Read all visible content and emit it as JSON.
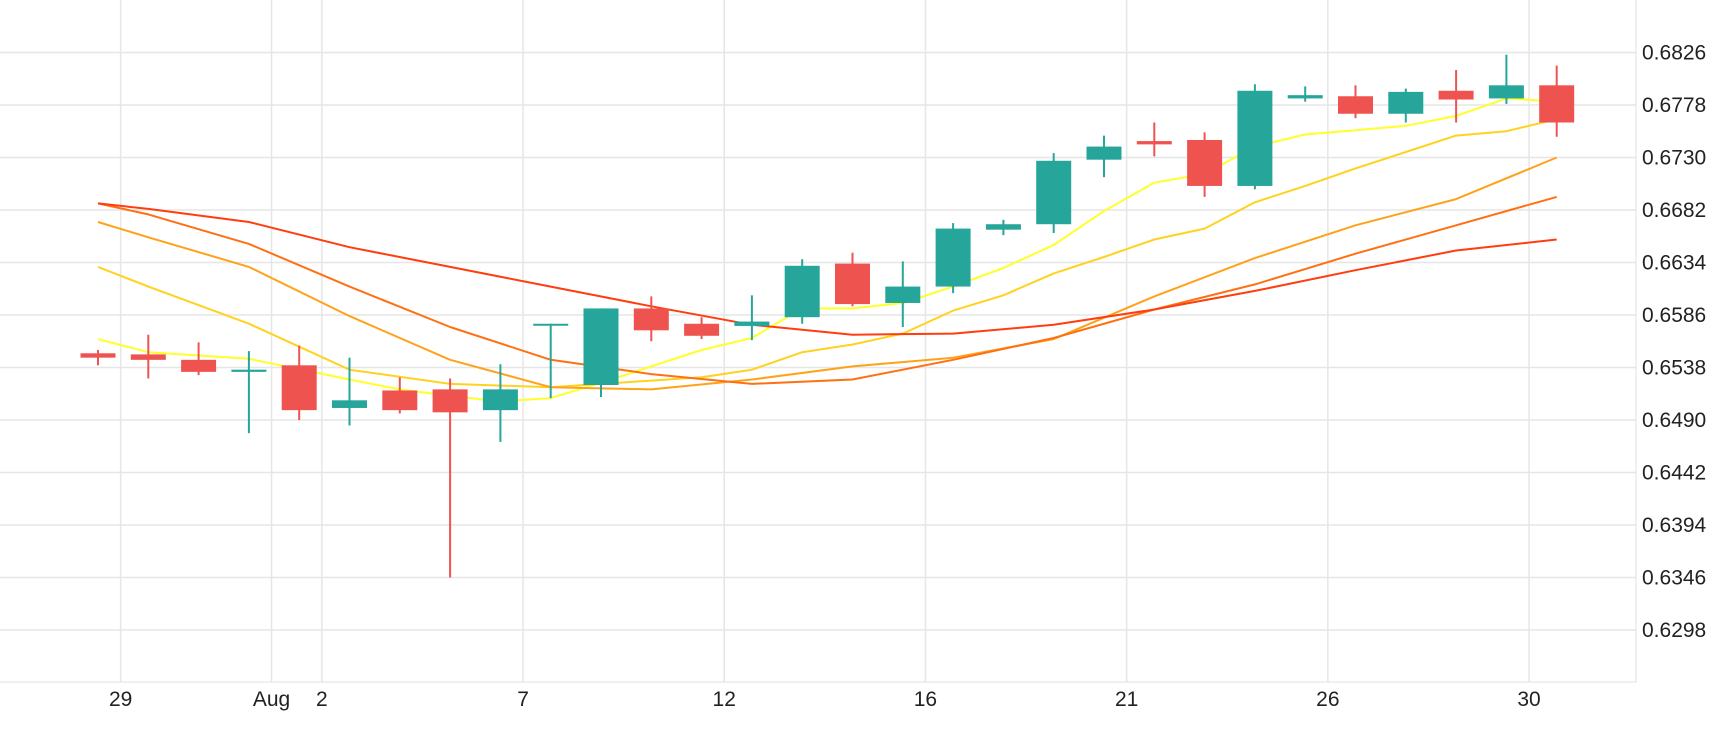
{
  "colors": {
    "background": "#ffffff",
    "grid": "#e6e6e6",
    "up": "#26a69a",
    "down": "#ef5350",
    "ma": [
      "#ffff2a",
      "#ffd21f",
      "#ffa21a",
      "#ff7014",
      "#ff3d0f"
    ]
  },
  "chart_data": {
    "type": "candlestick",
    "title": "",
    "xlabel": "",
    "ylabel": "",
    "grid": true,
    "y_axis_position": "right",
    "ylim": [
      0.625,
      0.6874
    ],
    "x_ticks": [
      {
        "label": "29",
        "x": 0.45
      },
      {
        "label": "Aug",
        "x": 3.45
      },
      {
        "label": "2",
        "x": 4.45
      },
      {
        "label": "7",
        "x": 8.45
      },
      {
        "label": "12",
        "x": 12.45
      },
      {
        "label": "16",
        "x": 16.45
      },
      {
        "label": "21",
        "x": 20.45
      },
      {
        "label": "26",
        "x": 24.45
      },
      {
        "label": "30",
        "x": 28.45
      }
    ],
    "y_ticks": [
      "0.6826",
      "0.6778",
      "0.6730",
      "0.6682",
      "0.6634",
      "0.6586",
      "0.6538",
      "0.6490",
      "0.6442",
      "0.6394",
      "0.6346",
      "0.6298"
    ],
    "candles": [
      {
        "x": 0,
        "open": 0.6551,
        "high": 0.6554,
        "low": 0.654,
        "close": 0.6547
      },
      {
        "x": 1,
        "open": 0.655,
        "high": 0.6568,
        "low": 0.6528,
        "close": 0.6545
      },
      {
        "x": 2,
        "open": 0.6545,
        "high": 0.6561,
        "low": 0.6531,
        "close": 0.6534
      },
      {
        "x": 3,
        "open": 0.6534,
        "high": 0.6553,
        "low": 0.6478,
        "close": 0.6536
      },
      {
        "x": 4,
        "open": 0.654,
        "high": 0.6558,
        "low": 0.649,
        "close": 0.6499
      },
      {
        "x": 5,
        "open": 0.6501,
        "high": 0.6547,
        "low": 0.6485,
        "close": 0.6508
      },
      {
        "x": 6,
        "open": 0.6517,
        "high": 0.6529,
        "low": 0.6496,
        "close": 0.6499
      },
      {
        "x": 7,
        "open": 0.6518,
        "high": 0.6528,
        "low": 0.6346,
        "close": 0.6497
      },
      {
        "x": 8,
        "open": 0.6499,
        "high": 0.6541,
        "low": 0.647,
        "close": 0.6518
      },
      {
        "x": 9,
        "open": 0.6578,
        "high": 0.6578,
        "low": 0.651,
        "close": 0.6578
      },
      {
        "x": 10,
        "open": 0.6522,
        "high": 0.6592,
        "low": 0.6511,
        "close": 0.6592
      },
      {
        "x": 11,
        "open": 0.6592,
        "high": 0.6603,
        "low": 0.6562,
        "close": 0.6572
      },
      {
        "x": 12,
        "open": 0.6578,
        "high": 0.6584,
        "low": 0.6564,
        "close": 0.6567
      },
      {
        "x": 13,
        "open": 0.6576,
        "high": 0.6604,
        "low": 0.6563,
        "close": 0.658
      },
      {
        "x": 14,
        "open": 0.6584,
        "high": 0.6637,
        "low": 0.6578,
        "close": 0.6631
      },
      {
        "x": 15,
        "open": 0.6633,
        "high": 0.6643,
        "low": 0.6594,
        "close": 0.6596
      },
      {
        "x": 16,
        "open": 0.6597,
        "high": 0.6635,
        "low": 0.6575,
        "close": 0.6612
      },
      {
        "x": 17,
        "open": 0.6612,
        "high": 0.667,
        "low": 0.6606,
        "close": 0.6665
      },
      {
        "x": 18,
        "open": 0.6664,
        "high": 0.6673,
        "low": 0.6659,
        "close": 0.6669
      },
      {
        "x": 19,
        "open": 0.6669,
        "high": 0.6734,
        "low": 0.6661,
        "close": 0.6727
      },
      {
        "x": 20,
        "open": 0.6728,
        "high": 0.675,
        "low": 0.6712,
        "close": 0.674
      },
      {
        "x": 21,
        "open": 0.6745,
        "high": 0.6762,
        "low": 0.6731,
        "close": 0.6742
      },
      {
        "x": 22,
        "open": 0.6746,
        "high": 0.6753,
        "low": 0.6694,
        "close": 0.6704
      },
      {
        "x": 23,
        "open": 0.6704,
        "high": 0.6797,
        "low": 0.6701,
        "close": 0.6791
      },
      {
        "x": 24,
        "open": 0.6784,
        "high": 0.6795,
        "low": 0.6781,
        "close": 0.6787
      },
      {
        "x": 25,
        "open": 0.6786,
        "high": 0.6796,
        "low": 0.6766,
        "close": 0.677
      },
      {
        "x": 26,
        "open": 0.677,
        "high": 0.6793,
        "low": 0.6762,
        "close": 0.679
      },
      {
        "x": 27,
        "open": 0.6791,
        "high": 0.681,
        "low": 0.6762,
        "close": 0.6783
      },
      {
        "x": 28,
        "open": 0.6784,
        "high": 0.6824,
        "low": 0.6779,
        "close": 0.6796
      },
      {
        "x": 29,
        "open": 0.6796,
        "high": 0.6814,
        "low": 0.6749,
        "close": 0.6762
      }
    ],
    "moving_averages": [
      {
        "x": [
          0,
          1,
          3,
          5,
          6,
          7,
          8,
          9,
          10,
          12,
          13,
          14,
          15,
          16,
          17,
          18,
          19,
          20,
          21,
          22,
          23,
          24,
          25,
          26,
          27,
          28,
          29
        ],
        "values": [
          0.6564,
          0.6552,
          0.6546,
          0.6527,
          0.6518,
          0.6512,
          0.6507,
          0.651,
          0.6524,
          0.6554,
          0.6565,
          0.6592,
          0.6592,
          0.6597,
          0.6612,
          0.6629,
          0.665,
          0.6681,
          0.6707,
          0.6715,
          0.674,
          0.6751,
          0.6755,
          0.6759,
          0.6768,
          0.6784,
          0.6781
        ]
      },
      {
        "x": [
          0,
          1,
          3,
          5,
          7,
          9,
          10,
          11,
          12,
          13,
          14,
          15,
          16,
          17,
          18,
          19,
          20,
          21,
          22,
          23,
          24,
          25,
          26,
          27,
          28,
          29
        ],
        "values": [
          0.663,
          0.6612,
          0.6578,
          0.6536,
          0.6523,
          0.652,
          0.6523,
          0.6526,
          0.6529,
          0.6536,
          0.6552,
          0.6559,
          0.6569,
          0.659,
          0.6604,
          0.6624,
          0.6639,
          0.6655,
          0.6665,
          0.6689,
          0.6704,
          0.672,
          0.6735,
          0.675,
          0.6754,
          0.6765
        ]
      },
      {
        "x": [
          0,
          1,
          3,
          5,
          7,
          9,
          11,
          13,
          15,
          17,
          19,
          21,
          23,
          25,
          27,
          29
        ],
        "values": [
          0.6671,
          0.6657,
          0.663,
          0.6585,
          0.6545,
          0.652,
          0.6518,
          0.6527,
          0.6539,
          0.6547,
          0.6564,
          0.6603,
          0.6638,
          0.6668,
          0.6692,
          0.673
        ]
      },
      {
        "x": [
          0,
          1,
          3,
          5,
          7,
          9,
          11,
          13,
          15,
          17,
          19,
          21,
          23,
          25,
          27,
          29
        ],
        "values": [
          0.6688,
          0.6678,
          0.6651,
          0.6612,
          0.6575,
          0.6545,
          0.6532,
          0.6523,
          0.6527,
          0.6545,
          0.6565,
          0.6591,
          0.6614,
          0.6642,
          0.6668,
          0.6694
        ]
      },
      {
        "x": [
          0,
          1,
          3,
          5,
          7,
          9,
          11,
          13,
          15,
          17,
          19,
          21,
          23,
          25,
          27,
          29
        ],
        "values": [
          0.6688,
          0.6683,
          0.6671,
          0.6648,
          0.663,
          0.6612,
          0.6594,
          0.6577,
          0.6568,
          0.6569,
          0.6577,
          0.6591,
          0.6608,
          0.6627,
          0.6645,
          0.6655
        ]
      }
    ]
  }
}
